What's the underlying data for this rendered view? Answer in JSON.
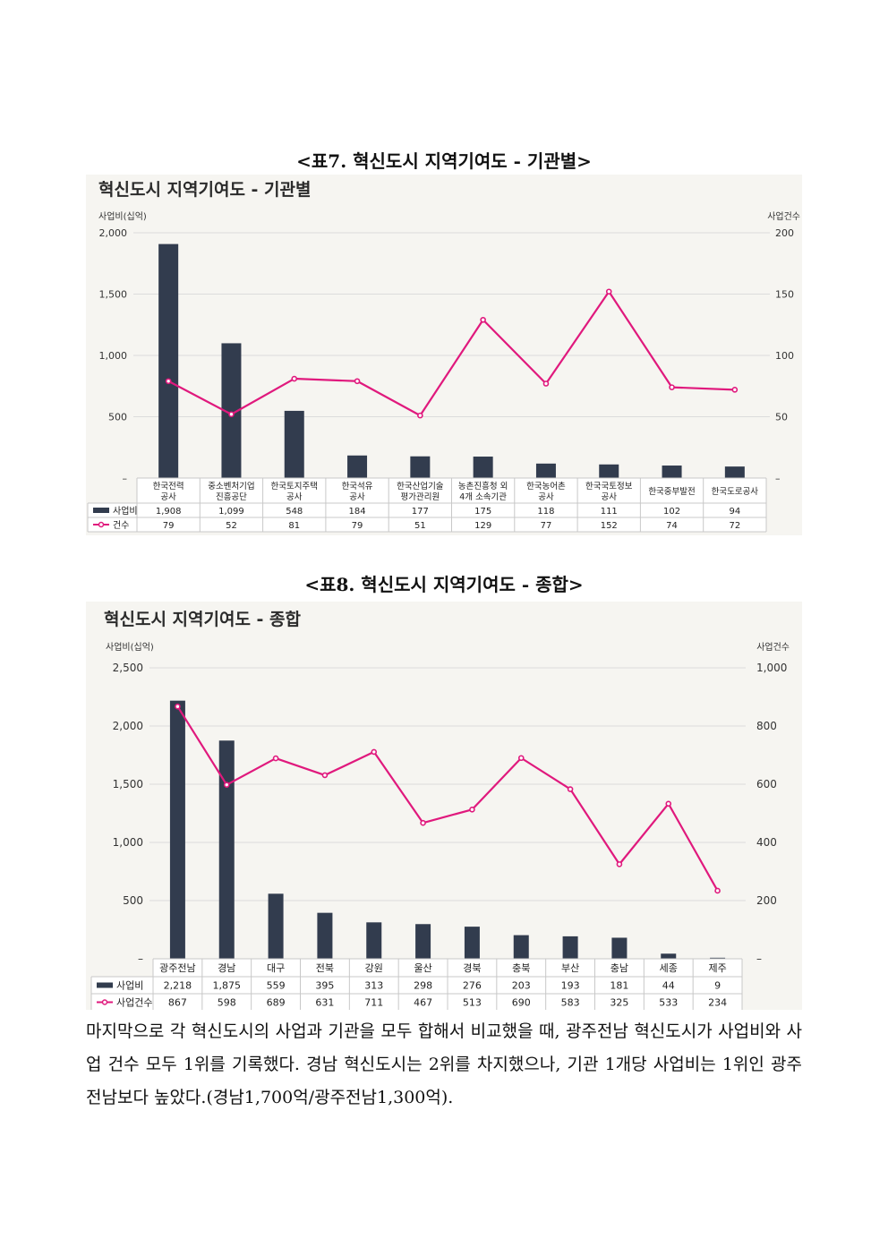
{
  "captions": {
    "table7": "<표7. 혁신도시 지역기여도 - 기관별>",
    "table8": "<표8. 혁신도시 지역기여도 - 종합>"
  },
  "paragraph": "마지막으로 각 혁신도시의 사업과 기관을 모두 합해서 비교했을 때, 광주전남 혁신도시가 사업비와 사업 건수 모두 1위를 기록했다. 경남 혁신도시는 2위를 차지했으나, 기관 1개당 사업비는 1위인 광주전남보다 높았다.(경남1,700억/광주전남1,300억).",
  "colors": {
    "bar": "#323c4e",
    "line": "#e0197d",
    "background": "#f6f5f1",
    "grid": "#dcdcdc"
  },
  "chart_data": [
    {
      "type": "bar+line",
      "title": "혁신도시 지역기여도 - 기관별",
      "ylabel_left": "사업비(십억)",
      "ylabel_right": "사업건수",
      "y_left_ticks": [
        "–",
        "500",
        "1,000",
        "1,500",
        "2,000"
      ],
      "y_right_ticks": [
        "–",
        "50",
        "100",
        "150",
        "200"
      ],
      "ylim_left": [
        0,
        2000
      ],
      "ylim_right": [
        0,
        200
      ],
      "categories": [
        [
          "한국전력",
          "공사"
        ],
        [
          "중소벤처기업",
          "진흥공단"
        ],
        [
          "한국토지주택",
          "공사"
        ],
        [
          "한국석유",
          "공사"
        ],
        [
          "한국산업기술",
          "평가관리원"
        ],
        [
          "농촌진흥청 외",
          "4개 소속기관"
        ],
        [
          "한국농어촌",
          "공사"
        ],
        [
          "한국국토정보",
          "공사"
        ],
        [
          "한국중부발전"
        ],
        [
          "한국도로공사"
        ]
      ],
      "series": [
        {
          "name": "사업비",
          "kind": "bar",
          "axis": "left",
          "values": [
            1908,
            1099,
            548,
            184,
            177,
            175,
            118,
            111,
            102,
            94
          ],
          "labels": [
            "1,908",
            "1,099",
            "548",
            "184",
            "177",
            "175",
            "118",
            "111",
            "102",
            "94"
          ]
        },
        {
          "name": "건수",
          "kind": "line",
          "axis": "right",
          "values": [
            79,
            52,
            81,
            79,
            51,
            129,
            77,
            152,
            74,
            72
          ],
          "labels": [
            "79",
            "52",
            "81",
            "79",
            "51",
            "129",
            "77",
            "152",
            "74",
            "72"
          ]
        }
      ]
    },
    {
      "type": "bar+line",
      "title": "혁신도시 지역기여도 - 종합",
      "ylabel_left": "사업비(십억)",
      "ylabel_right": "사업건수",
      "y_left_ticks": [
        "–",
        "500",
        "1,000",
        "1,500",
        "2,000",
        "2,500"
      ],
      "y_right_ticks": [
        "–",
        "200",
        "400",
        "600",
        "800",
        "1,000"
      ],
      "ylim_left": [
        0,
        2500
      ],
      "ylim_right": [
        0,
        1000
      ],
      "categories": [
        [
          "광주전남"
        ],
        [
          "경남"
        ],
        [
          "대구"
        ],
        [
          "전북"
        ],
        [
          "강원"
        ],
        [
          "울산"
        ],
        [
          "경북"
        ],
        [
          "충북"
        ],
        [
          "부산"
        ],
        [
          "충남"
        ],
        [
          "세종"
        ],
        [
          "제주"
        ]
      ],
      "series": [
        {
          "name": "사업비",
          "kind": "bar",
          "axis": "left",
          "values": [
            2218,
            1875,
            559,
            395,
            313,
            298,
            276,
            203,
            193,
            181,
            44,
            9
          ],
          "labels": [
            "2,218",
            "1,875",
            "559",
            "395",
            "313",
            "298",
            "276",
            "203",
            "193",
            "181",
            "44",
            "9"
          ]
        },
        {
          "name": "사업건수",
          "kind": "line",
          "axis": "right",
          "values": [
            867,
            598,
            689,
            631,
            711,
            467,
            513,
            690,
            583,
            325,
            533,
            234
          ],
          "labels": [
            "867",
            "598",
            "689",
            "631",
            "711",
            "467",
            "513",
            "690",
            "583",
            "325",
            "533",
            "234"
          ]
        }
      ]
    }
  ]
}
